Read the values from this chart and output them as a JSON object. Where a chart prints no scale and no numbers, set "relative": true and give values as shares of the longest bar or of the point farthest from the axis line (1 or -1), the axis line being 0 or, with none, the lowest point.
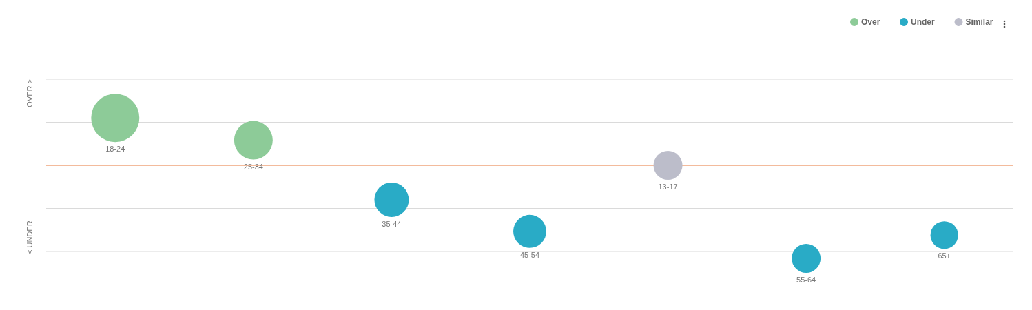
{
  "chart_data": {
    "type": "bubble",
    "relative": true,
    "categories": [
      "18-24",
      "25-34",
      "35-44",
      "45-54",
      "13-17",
      "55-64",
      "65+"
    ],
    "series": [
      {
        "name": "Over",
        "color": "#8dcb98",
        "values": [
          0.51,
          0.27,
          null,
          null,
          null,
          null,
          null
        ],
        "sizes": [
          1,
          0.64,
          null,
          null,
          null,
          null,
          null
        ]
      },
      {
        "name": "Under",
        "color": "#29abc6",
        "values": [
          null,
          null,
          -0.37,
          -0.71,
          null,
          -1,
          -0.75
        ],
        "sizes": [
          null,
          null,
          0.51,
          0.47,
          null,
          0.36,
          0.33
        ]
      },
      {
        "name": "Similar",
        "color": "#bcbdca",
        "values": [
          null,
          null,
          null,
          null,
          0,
          null,
          null
        ],
        "sizes": [
          null,
          null,
          null,
          null,
          0.36,
          null,
          null
        ]
      }
    ],
    "ref_lines": [
      {
        "axis": "y",
        "value": 0,
        "color": "#e8793a"
      }
    ],
    "annotations": [
      "OVER >",
      "< UNDER"
    ],
    "grid": true,
    "legend": "top right"
  }
}
